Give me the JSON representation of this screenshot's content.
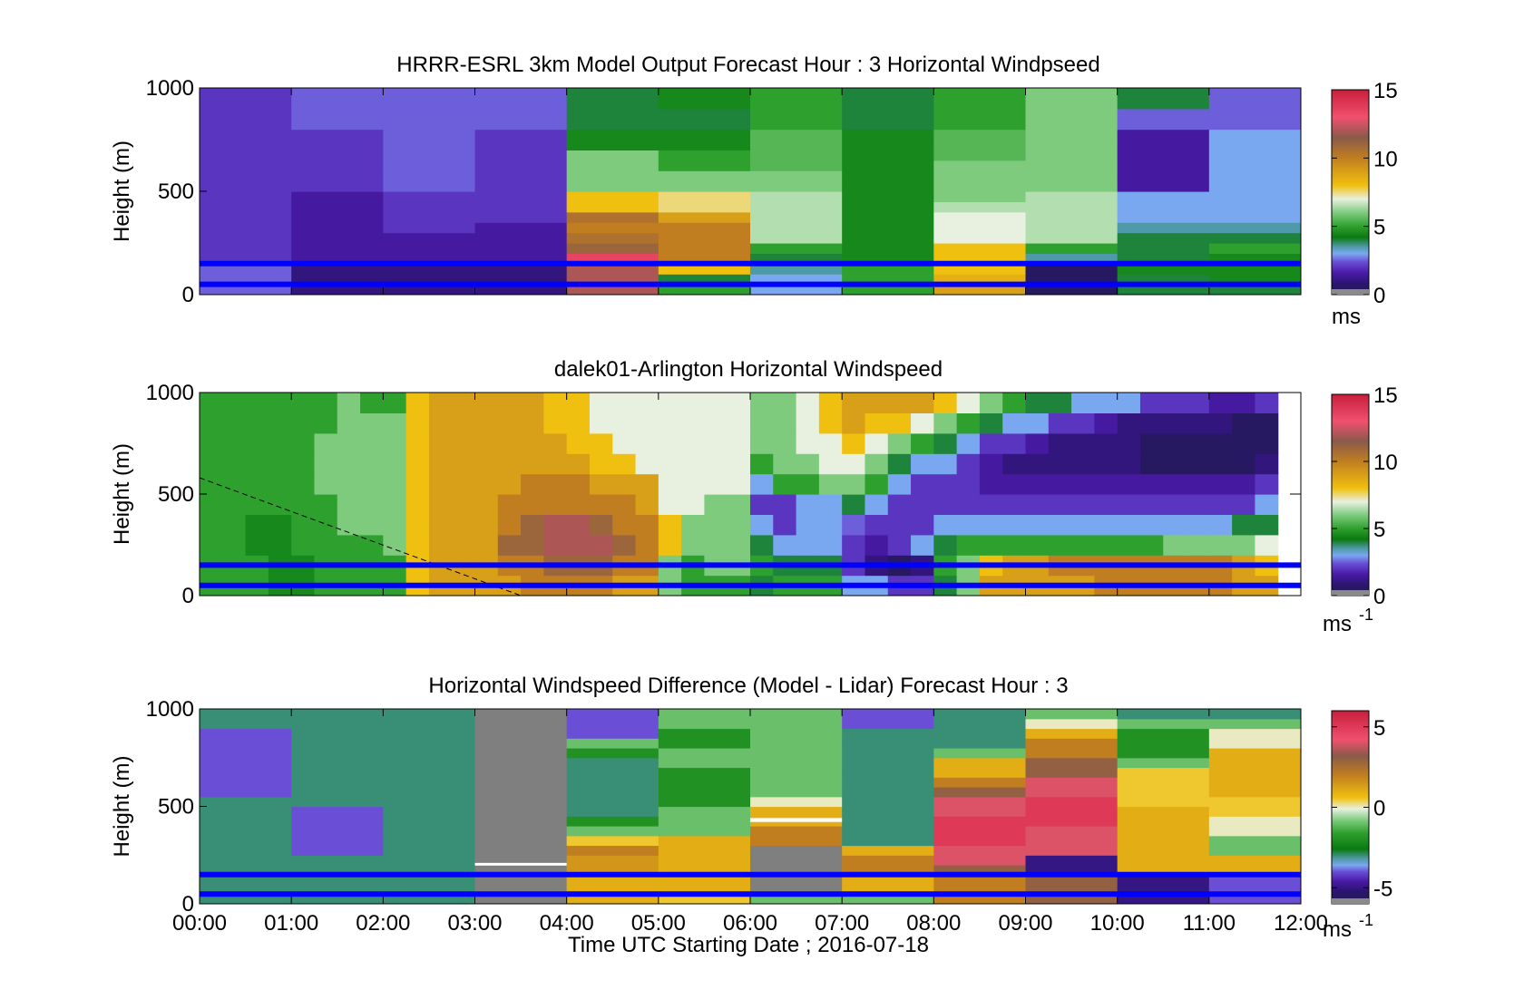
{
  "figure": {
    "xlabel": "Time UTC  Starting Date ; 2016-07-18",
    "xticks": [
      "00:00",
      "01:00",
      "02:00",
      "03:00",
      "04:00",
      "05:00",
      "06:00",
      "07:00",
      "08:00",
      "09:00",
      "10:00",
      "11:00",
      "12:00"
    ]
  },
  "colors": {
    "line_marker": "#0000ff",
    "palette": [
      "#231d4a",
      "#2a1570",
      "#4a1aa8",
      "#6a4fd6",
      "#7aa8f0",
      "#4f9aa8",
      "#0a7a10",
      "#2ea02e",
      "#7ecb7e",
      "#e8f0e0",
      "#f0c010",
      "#c07e20",
      "#8a5a4a",
      "#f0506e",
      "#c81e3c",
      "#8a8a8a",
      "#ffffff"
    ]
  },
  "chart_data": [
    {
      "type": "heatmap",
      "title": "HRRR-ESRL 3km Model Output   Forecast Hour : 3 Horizontal Windpseed",
      "ylabel": "Height (m)",
      "ylim": [
        0,
        1000
      ],
      "yticks": [
        "0",
        "500",
        "1000"
      ],
      "colorbar": {
        "range": [
          0,
          15
        ],
        "ticks": [
          "0",
          "5",
          "10",
          "15"
        ],
        "unit": "ms"
      },
      "x_columns": [
        "00:00",
        "01:00",
        "02:00",
        "03:00",
        "04:00",
        "05:00",
        "06:00",
        "07:00",
        "08:00",
        "09:00",
        "10:00",
        "11:00"
      ],
      "height_bins_m": [
        0,
        50,
        100,
        150,
        200,
        250,
        300,
        350,
        400,
        450,
        500,
        550,
        600,
        650,
        700,
        750,
        800,
        850,
        900,
        950
      ],
      "values_ms": [
        [
          2.5,
          1.0,
          1.0,
          1.0,
          12.0,
          5.0,
          3.0,
          5.0,
          9.0,
          0.5,
          4.0,
          4.0
        ],
        [
          2.5,
          1.0,
          1.0,
          1.0,
          12.0,
          4.0,
          3.0,
          5.0,
          8.5,
          0.5,
          4.0,
          4.5
        ],
        [
          2.5,
          1.0,
          1.0,
          1.0,
          12.0,
          8.0,
          3.5,
          5.0,
          8.0,
          0.5,
          4.5,
          4.5
        ],
        [
          2.0,
          1.5,
          1.5,
          1.5,
          13.5,
          10.0,
          4.0,
          4.5,
          8.0,
          3.5,
          4.0,
          4.5
        ],
        [
          2.0,
          1.5,
          1.5,
          1.5,
          11.0,
          10.0,
          5.0,
          4.5,
          8.0,
          5.0,
          4.0,
          5.0
        ],
        [
          2.0,
          1.5,
          1.5,
          1.5,
          10.5,
          10.0,
          6.5,
          4.5,
          7.0,
          6.5,
          4.0,
          4.0
        ],
        [
          2.0,
          1.5,
          2.0,
          1.5,
          10.0,
          10.0,
          6.5,
          4.5,
          7.0,
          6.5,
          3.5,
          3.5
        ],
        [
          2.0,
          1.5,
          2.0,
          2.0,
          10.5,
          9.0,
          6.5,
          4.5,
          7.0,
          6.5,
          3.0,
          3.0
        ],
        [
          2.0,
          1.5,
          2.0,
          2.0,
          8.0,
          7.5,
          6.5,
          4.5,
          6.5,
          6.5,
          3.0,
          3.0
        ],
        [
          2.0,
          1.5,
          2.0,
          2.0,
          8.0,
          7.5,
          6.5,
          4.5,
          6.0,
          6.5,
          3.0,
          3.0
        ],
        [
          2.0,
          2.0,
          2.5,
          2.0,
          6.0,
          6.0,
          6.0,
          4.5,
          6.0,
          6.0,
          1.5,
          3.0
        ],
        [
          2.0,
          2.0,
          2.5,
          2.0,
          6.0,
          6.0,
          6.0,
          4.5,
          6.0,
          6.0,
          1.5,
          3.0
        ],
        [
          2.0,
          2.0,
          2.5,
          2.0,
          6.0,
          5.0,
          5.5,
          4.5,
          6.0,
          6.0,
          1.5,
          3.0
        ],
        [
          2.0,
          2.0,
          2.5,
          2.0,
          6.0,
          5.0,
          5.5,
          4.5,
          5.5,
          6.0,
          1.5,
          3.0
        ],
        [
          2.0,
          2.0,
          2.5,
          2.0,
          4.5,
          4.5,
          5.5,
          4.5,
          5.5,
          6.0,
          1.5,
          3.0
        ],
        [
          2.0,
          2.0,
          2.5,
          2.0,
          4.5,
          4.5,
          5.5,
          4.5,
          5.5,
          6.0,
          1.5,
          3.0
        ],
        [
          2.0,
          2.5,
          2.5,
          2.5,
          4.0,
          4.0,
          5.0,
          4.0,
          5.0,
          6.0,
          2.5,
          2.5
        ],
        [
          2.0,
          2.5,
          2.5,
          2.5,
          4.0,
          4.0,
          5.0,
          4.0,
          5.0,
          6.0,
          2.5,
          2.5
        ],
        [
          2.0,
          2.5,
          2.5,
          2.5,
          4.0,
          4.5,
          5.0,
          4.0,
          5.0,
          6.0,
          4.0,
          2.5
        ],
        [
          2.0,
          2.5,
          2.5,
          2.5,
          4.0,
          4.5,
          5.0,
          4.0,
          5.0,
          6.0,
          4.0,
          2.5
        ]
      ],
      "reference_lines_m": [
        50,
        150
      ]
    },
    {
      "type": "heatmap",
      "title": "dalek01-Arlington  Horizontal Windspeed",
      "ylabel": "Height (m)",
      "ylim": [
        0,
        1000
      ],
      "yticks": [
        "0",
        "500",
        "1000"
      ],
      "colorbar": {
        "range": [
          0,
          15
        ],
        "ticks": [
          "0",
          "5",
          "10",
          "15"
        ],
        "unit": "ms",
        "unit_exp": "-1"
      },
      "x_range_h": [
        0,
        11.85
      ],
      "time_steps_h": [
        0,
        0.25,
        0.5,
        0.75,
        1,
        1.25,
        1.5,
        1.75,
        2,
        2.25,
        2.5,
        2.75,
        3,
        3.25,
        3.5,
        3.75,
        4,
        4.25,
        4.5,
        4.75,
        5,
        5.25,
        5.5,
        5.75,
        6,
        6.25,
        6.5,
        6.75,
        7,
        7.25,
        7.5,
        7.75,
        8,
        8.25,
        8.5,
        8.75,
        9,
        9.25,
        9.5,
        9.75,
        10,
        10.25,
        10.5,
        10.75,
        11,
        11.25,
        11.5
      ],
      "height_bins_m": [
        0,
        100,
        200,
        300,
        400,
        500,
        600,
        700,
        800,
        900
      ],
      "values_ms": [
        [
          5,
          5,
          5,
          4.5,
          4.5,
          5,
          5,
          5,
          5,
          8,
          9,
          9,
          9,
          9,
          10,
          10,
          10,
          10,
          9,
          9,
          6,
          5,
          5,
          5,
          4,
          5,
          5,
          5,
          3,
          3,
          2,
          2,
          4,
          6,
          9,
          9,
          9,
          9,
          9,
          10,
          10,
          10,
          10,
          10,
          10,
          9,
          9
        ],
        [
          5,
          5,
          5,
          4.5,
          4.5,
          5,
          5,
          5,
          5,
          8,
          9,
          9,
          9,
          10,
          10,
          11,
          11,
          11,
          10,
          10,
          6,
          5,
          6,
          6,
          5,
          4,
          4,
          4,
          2,
          1,
          0.5,
          1,
          5,
          6,
          8,
          9,
          9,
          10,
          10,
          10,
          10,
          10,
          10,
          10,
          10,
          9,
          8
        ],
        [
          5,
          5,
          4.5,
          4.5,
          5,
          5,
          5,
          5,
          6,
          8,
          9,
          9,
          9,
          11,
          11,
          12,
          12,
          12,
          11,
          10,
          8,
          6,
          6,
          6,
          4,
          3,
          3,
          3,
          2,
          1.5,
          2,
          3,
          4,
          5,
          5,
          5,
          5,
          5,
          5,
          5,
          5,
          5,
          6,
          6,
          6,
          6,
          7
        ],
        [
          5,
          5,
          4.5,
          4.5,
          5,
          5,
          6,
          6,
          6,
          8,
          9,
          9,
          9,
          10,
          11,
          12,
          12,
          11,
          10,
          10,
          8,
          6,
          6,
          6,
          3,
          2,
          3,
          3,
          2.5,
          2,
          2,
          2,
          3,
          3,
          3,
          3,
          3,
          3,
          3,
          3,
          3,
          3,
          3,
          3,
          3,
          4,
          4
        ],
        [
          5,
          5,
          5,
          5,
          5,
          5,
          6,
          6,
          6,
          8,
          9,
          9,
          9,
          10,
          10,
          10,
          10,
          10,
          10,
          9,
          7,
          7,
          6,
          6,
          2,
          2,
          3,
          3,
          4,
          3,
          2,
          2,
          2,
          2,
          2,
          2,
          2,
          2,
          2,
          2,
          2,
          2,
          2,
          2,
          2,
          2,
          3
        ],
        [
          5,
          5,
          5,
          5,
          5,
          6,
          6,
          6,
          6,
          8,
          9,
          9,
          9,
          9,
          10,
          10,
          10,
          9,
          9,
          9,
          7,
          7,
          7,
          7,
          3,
          5,
          5,
          6,
          6,
          5,
          3,
          2,
          2,
          2,
          1.5,
          1.5,
          1.5,
          1.5,
          1.5,
          1.5,
          1.5,
          1.5,
          1.5,
          1.5,
          1.5,
          1.5,
          2
        ],
        [
          5,
          5,
          5,
          5,
          5,
          6,
          6,
          6,
          6,
          8,
          9,
          9,
          9,
          9,
          9,
          9,
          9,
          8,
          8,
          7,
          7,
          7,
          7,
          7,
          5,
          6,
          6,
          7,
          7,
          6,
          4,
          3,
          3,
          2,
          1.5,
          1,
          1,
          1,
          1,
          1,
          1,
          0.5,
          0.5,
          0.5,
          0.5,
          0.5,
          1
        ],
        [
          5,
          5,
          5,
          5,
          5,
          6,
          6,
          6,
          6,
          8,
          9,
          9,
          9,
          9,
          9,
          9,
          8,
          8,
          7,
          7,
          7,
          7,
          7,
          7,
          6,
          6,
          7,
          7,
          8,
          7,
          6,
          5,
          4,
          3,
          2,
          2,
          1.5,
          1,
          1,
          1,
          1,
          0.5,
          0.5,
          0.5,
          0.5,
          0.5,
          0.5
        ],
        [
          5,
          5,
          5,
          5,
          5,
          5,
          6,
          6,
          6,
          8,
          9,
          9,
          9,
          9,
          9,
          8,
          8,
          7,
          7,
          7,
          7,
          7,
          7,
          7,
          6,
          6,
          7,
          8,
          9,
          8,
          8,
          7,
          6,
          5,
          4,
          3,
          3,
          2,
          2,
          1.5,
          1,
          1,
          1,
          1,
          1,
          0.5,
          0.5
        ],
        [
          5,
          5,
          5,
          5,
          5,
          5,
          6,
          5,
          5,
          8,
          9,
          9,
          9,
          9,
          9,
          8,
          8,
          7,
          7,
          7,
          7,
          7,
          7,
          7,
          6,
          6,
          7,
          8,
          9,
          9,
          9,
          9,
          8,
          7,
          6,
          5,
          4,
          4,
          3,
          3,
          3,
          2,
          2,
          2,
          1.5,
          1.5,
          2
        ]
      ],
      "annotations": [
        {
          "kind": "dashed-line",
          "from": [
            0,
            580
          ],
          "to": [
            3.5,
            0
          ]
        },
        {
          "kind": "right-axis-tick",
          "y": 500
        }
      ],
      "reference_lines_m": [
        50,
        150
      ]
    },
    {
      "type": "heatmap",
      "title": "Horizontal Windspeed Difference (Model - Lidar) Forecast Hour : 3",
      "ylabel": "Height (m)",
      "ylim": [
        0,
        1000
      ],
      "yticks": [
        "0",
        "500",
        "1000"
      ],
      "colorbar": {
        "range": [
          -6,
          6
        ],
        "ticks": [
          "-5",
          "0",
          "5"
        ],
        "unit": "ms",
        "unit_exp": "-1"
      },
      "x_columns": [
        "00:00",
        "01:00",
        "02:00",
        "03:00",
        "04:00",
        "05:00",
        "06:00",
        "07:00",
        "08:00",
        "09:00",
        "10:00",
        "11:00"
      ],
      "height_bins_m": [
        0,
        50,
        100,
        150,
        200,
        250,
        300,
        350,
        400,
        450,
        500,
        550,
        600,
        650,
        700,
        750,
        800,
        850,
        900,
        950
      ],
      "values_ms": [
        [
          -3,
          -3,
          -3,
          null,
          1,
          0.5,
          -1,
          -1,
          2,
          3,
          -5,
          -4
        ],
        [
          -3,
          -3,
          -3,
          null,
          1,
          1,
          null,
          1,
          2,
          3,
          -5,
          -4
        ],
        [
          -3,
          -3,
          -3,
          null,
          1,
          1,
          null,
          1,
          2,
          3,
          -5,
          -4
        ],
        [
          -3,
          -3,
          -3,
          null,
          1.5,
          1,
          null,
          2,
          3,
          -5,
          1,
          1
        ],
        [
          -3,
          -3,
          -3,
          null,
          1.5,
          1,
          null,
          2,
          4,
          -5,
          1,
          1
        ],
        [
          -3,
          -4,
          -3,
          null,
          2,
          1,
          null,
          1,
          4,
          4,
          1,
          -1
        ],
        [
          -3,
          -4,
          -3,
          null,
          0.5,
          1,
          2,
          -3,
          5,
          4,
          1,
          -1
        ],
        [
          -3,
          -4,
          -3,
          null,
          -1,
          -1,
          2,
          -3,
          5,
          4,
          1,
          0
        ],
        [
          -3,
          -4,
          -3,
          null,
          -2,
          -1,
          1,
          -3,
          5,
          5,
          1,
          0
        ],
        [
          -3,
          -4,
          -3,
          null,
          -3,
          -1,
          1,
          -3,
          4,
          5,
          1,
          0.5
        ],
        [
          -3,
          -3,
          -3,
          null,
          -3,
          -2,
          0,
          -3,
          4,
          5,
          0.5,
          0.5
        ],
        [
          -4,
          -3,
          -3,
          null,
          -3,
          -2,
          -1,
          -3,
          3,
          4,
          0.5,
          1
        ],
        [
          -4,
          -3,
          -3,
          null,
          -3,
          -2,
          -1,
          -3,
          2,
          4,
          0.5,
          1
        ],
        [
          -4,
          -3,
          -3,
          null,
          -3,
          -2,
          -1,
          -3,
          1,
          3,
          0.5,
          1
        ],
        [
          -4,
          -3,
          -3,
          null,
          -3,
          -1,
          -1,
          -3,
          1,
          3,
          -1,
          1
        ],
        [
          -4,
          -3,
          -3,
          null,
          -2,
          -1,
          -1,
          -3,
          -1,
          2,
          -2,
          1
        ],
        [
          -4,
          -3,
          -3,
          null,
          -1,
          -2,
          -1,
          -3,
          -3,
          2,
          -2,
          0
        ],
        [
          -4,
          -3,
          -3,
          null,
          -4,
          -2,
          -1,
          -3,
          -3,
          1,
          -2,
          0
        ],
        [
          -3,
          -3,
          -3,
          null,
          -4,
          -1,
          -1,
          -4,
          -3,
          0,
          -1,
          -1
        ],
        [
          -3,
          -3,
          -3,
          null,
          -4,
          -1,
          -1,
          -4,
          -3,
          -1,
          -3,
          -3
        ]
      ],
      "white_bands_m": [
        [
          200,
          210,
          3
        ],
        [
          420,
          440,
          6
        ]
      ],
      "reference_lines_m": [
        50,
        150
      ]
    }
  ]
}
